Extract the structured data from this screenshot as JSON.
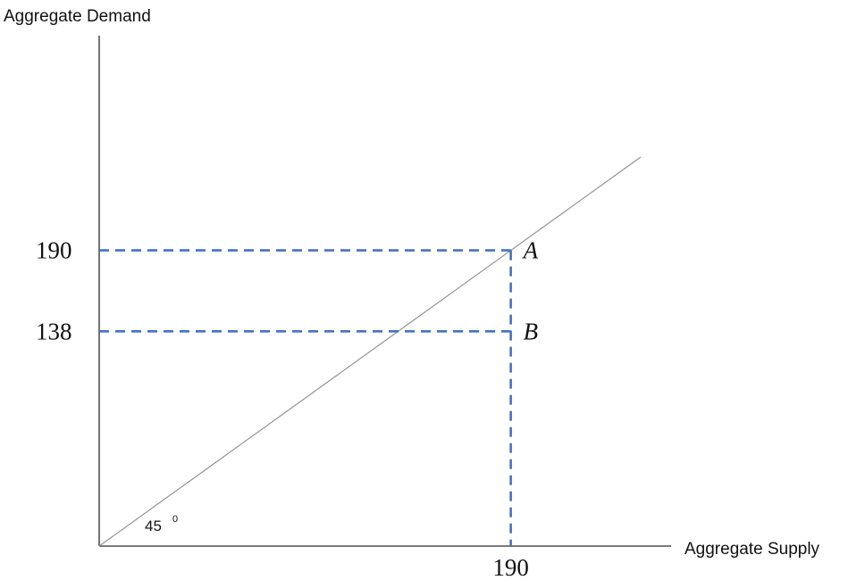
{
  "chart_data": {
    "type": "line",
    "xlabel": "Aggregate Supply",
    "ylabel": "Aggregate Demand",
    "x_ticks": [
      "190"
    ],
    "y_ticks": [
      "190",
      "138"
    ],
    "series": [
      {
        "x": [
          0,
          250
        ],
        "y": [
          0,
          250
        ]
      }
    ],
    "xlim": [
      0,
      250
    ],
    "ylim": [
      0,
      250
    ],
    "points": [
      {
        "label": "A",
        "x": 190,
        "y": 190
      },
      {
        "label": "B",
        "x": 190,
        "y": 138
      }
    ],
    "angle_label": "45",
    "angle_sup": "0",
    "grid": false,
    "colors": {
      "axis": "#2a2a2a",
      "line": "#9a9a9a",
      "guide": "#4472c4"
    }
  }
}
